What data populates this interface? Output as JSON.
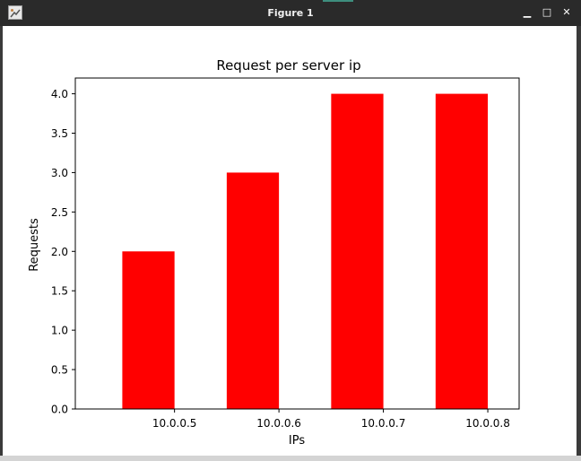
{
  "window": {
    "title": "Figure 1",
    "minimize_label": "▁",
    "maximize_label": "□",
    "close_label": "✕",
    "icon": "figure-app-icon"
  },
  "colors": {
    "bar": "#ff0000",
    "titlebar": "#2a2a2a",
    "canvas": "#ffffff"
  },
  "chart_data": {
    "type": "bar",
    "title": "Request per server ip",
    "xlabel": "IPs",
    "ylabel": "Requests",
    "categories": [
      "10.0.0.5",
      "10.0.0.6",
      "10.0.0.7",
      "10.0.0.8"
    ],
    "values": [
      2,
      3,
      4,
      4
    ],
    "ylim": [
      0,
      4.2
    ],
    "yticks": [
      "0.0",
      "0.5",
      "1.0",
      "1.5",
      "2.0",
      "2.5",
      "3.0",
      "3.5",
      "4.0"
    ],
    "grid": false,
    "legend": "none"
  }
}
